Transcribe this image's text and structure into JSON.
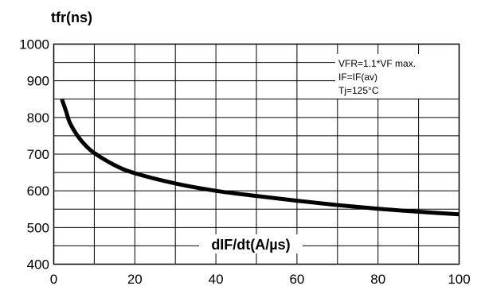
{
  "chart_data": {
    "type": "line",
    "ylabel": "tfr(ns)",
    "xlabel": "dIF/dt(A/µs)",
    "xlim": [
      0,
      100
    ],
    "ylim": [
      400,
      1000
    ],
    "x_ticks": [
      "0",
      "20",
      "40",
      "60",
      "80",
      "100"
    ],
    "y_ticks": [
      "400",
      "500",
      "600",
      "700",
      "800",
      "900",
      "1000"
    ],
    "grid": true,
    "grid_x_step": 10,
    "grid_y_step": 50,
    "annotations": [
      "VFR=1.1*VF max.",
      "IF=IF(av)",
      "Tj=125°C"
    ],
    "series": [
      {
        "x": [
          2,
          3,
          4,
          6,
          8,
          10,
          15,
          20,
          30,
          40,
          50,
          60,
          70,
          80,
          90,
          100
        ],
        "y": [
          850,
          818,
          785,
          748,
          722,
          703,
          670,
          648,
          620,
          600,
          586,
          573,
          561,
          551,
          543,
          536
        ]
      }
    ],
    "line_color": "#000000"
  }
}
